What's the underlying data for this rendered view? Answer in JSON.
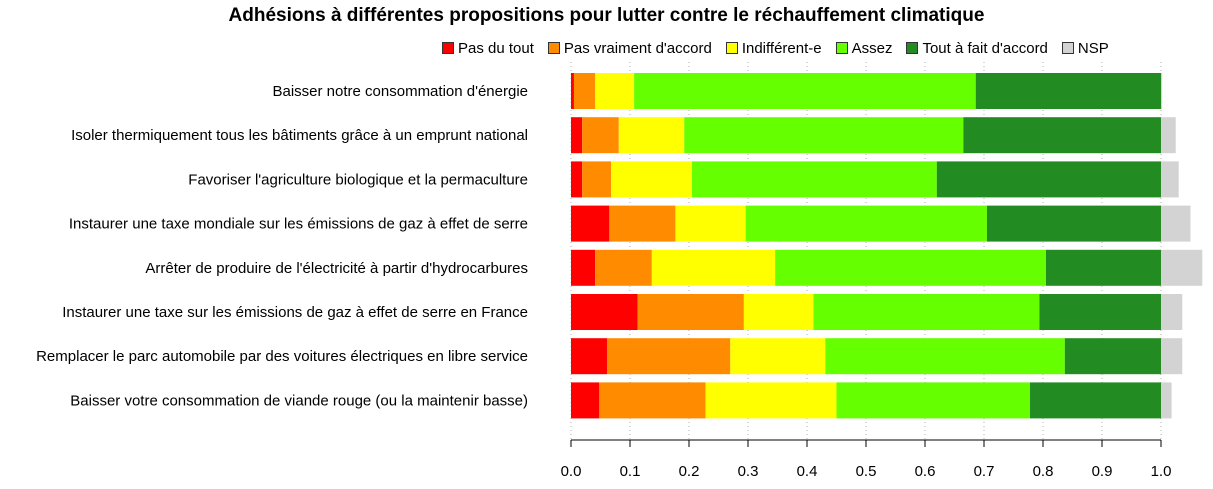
{
  "chart_data": {
    "type": "bar",
    "orientation": "horizontal",
    "stacked": true,
    "title": "Adhésions à différentes propositions pour lutter contre le réchauffement climatique",
    "xlabel": "",
    "ylabel": "",
    "xlim": [
      0,
      1.07
    ],
    "x_ticks": [
      "0.0",
      "0.1",
      "0.2",
      "0.3",
      "0.4",
      "0.5",
      "0.6",
      "0.7",
      "0.8",
      "0.9",
      "1.0"
    ],
    "grid": "vertical dotted",
    "legend_position": "top",
    "categories": [
      "Baisser notre consommation d'énergie",
      "Isoler thermiquement tous les bâtiments grâce à un emprunt national",
      "Favoriser l'agriculture biologique et la permaculture",
      "Instaurer une taxe mondiale sur les émissions de gaz à effet de serre",
      "Arrêter de produire de l'électricité à partir d'hydrocarbures",
      "Instaurer une taxe sur les émissions de gaz à effet de serre en France",
      "Remplacer le parc automobile par des voitures électriques en libre service",
      "Baisser votre consommation de viande rouge (ou la maintenir basse)"
    ],
    "series": [
      {
        "name": "Pas du tout",
        "color": "#ff0000",
        "values": [
          0.005,
          0.019,
          0.019,
          0.065,
          0.041,
          0.113,
          0.061,
          0.048
        ]
      },
      {
        "name": "Pas vraiment d'accord",
        "color": "#ff8c00",
        "values": [
          0.036,
          0.062,
          0.049,
          0.112,
          0.096,
          0.18,
          0.209,
          0.18
        ]
      },
      {
        "name": "Indifférent-e",
        "color": "#ffff00",
        "values": [
          0.066,
          0.111,
          0.137,
          0.119,
          0.209,
          0.118,
          0.161,
          0.222
        ]
      },
      {
        "name": "Assez",
        "color": "#66ff00",
        "values": [
          0.579,
          0.473,
          0.415,
          0.409,
          0.459,
          0.383,
          0.406,
          0.328
        ]
      },
      {
        "name": "Tout à fait d'accord",
        "color": "#228b22",
        "values": [
          0.314,
          0.335,
          0.38,
          0.295,
          0.195,
          0.206,
          0.163,
          0.222
        ]
      },
      {
        "name": "NSP",
        "color": "#d3d3d3",
        "values": [
          0.002,
          0.025,
          0.03,
          0.05,
          0.07,
          0.036,
          0.036,
          0.018
        ]
      }
    ]
  }
}
